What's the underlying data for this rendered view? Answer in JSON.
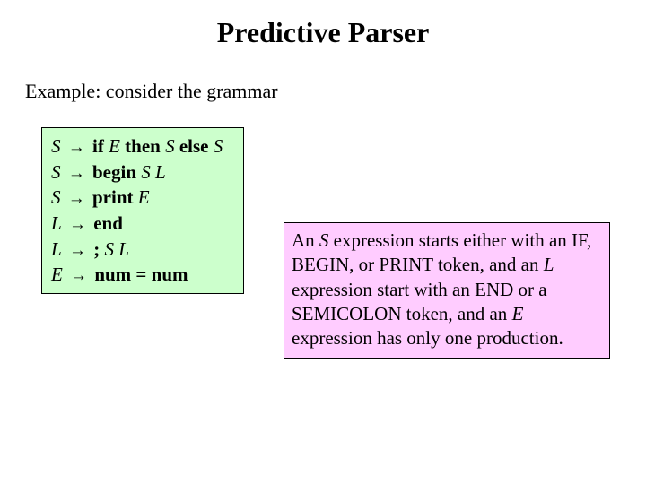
{
  "title": "Predictive Parser",
  "subtitle": "Example: consider the grammar",
  "grammar": {
    "bg": "#ccffcc",
    "border": "#000000",
    "rules": {
      "r0": {
        "lhs": "S",
        "t1": "if ",
        "n1": "E",
        "t2": " then ",
        "n2": "S",
        "t3": " else ",
        "n3": "S"
      },
      "r1": {
        "lhs": "S",
        "t1": "begin ",
        "n1": "S L"
      },
      "r2": {
        "lhs": "S",
        "t1": "print ",
        "n1": "E"
      },
      "r3": {
        "lhs": "L",
        "t1": "end"
      },
      "r4": {
        "lhs": "L",
        "t1": "; ",
        "n1": "S L"
      },
      "r5": {
        "lhs": "E",
        "t1": "num = num"
      }
    }
  },
  "explain": {
    "bg": "#ffccff",
    "border": "#000000",
    "p1a": "An ",
    "p1s": "S",
    "p1b": " expression starts either with an IF, BEGIN, or PRINT token, and an ",
    "p1l": "L",
    "p1c": " expression start with an END or a SEMICOLON token, and an ",
    "p1e": "E",
    "p1d": " expression has only one production."
  }
}
